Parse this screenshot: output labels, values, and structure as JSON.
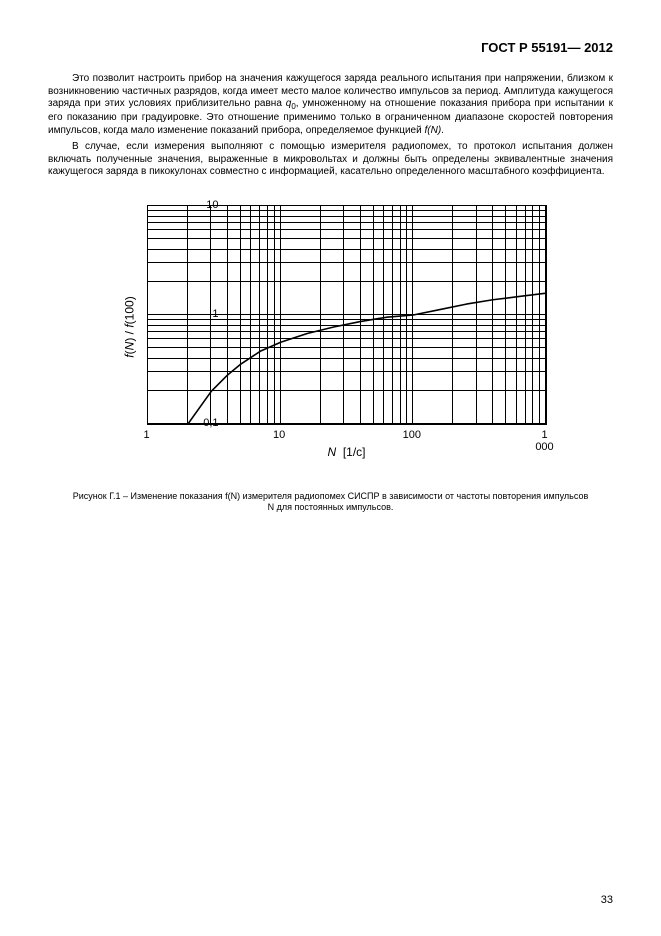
{
  "header": {
    "title": "ГОСТ Р  55191— 2012"
  },
  "paragraphs": {
    "p1_pre": "Это позволит настроить прибор на значения кажущегося заряда реального испытания при напряжении, близком к возникновению частичных разрядов, когда имеет место малое количество импульсов за период. Амплитуда кажущегося заряда при этих условиях приблизительно равна ",
    "p1_sym_q": "q",
    "p1_sub0": "0",
    "p1_mid": ", умноженному на отношение показания прибора при испытании к его показанию при градуировке. Это отношение применимо только в ограниченном диапазоне скоростей повторения импульсов, когда мало изменение показаний прибора, определяемое функцией ",
    "p1_fn": "f(N)",
    "p1_end": ".",
    "p2": "В случае, если измерения выполняют с помощью измерителя радиопомех, то протокол испытания должен включать полученные значения, выраженные в микровольтах и должны быть определены эквивалентные значения кажущегося заряда в пикокулонах совместно с информацией, касательно определенного масштабного коэффициента."
  },
  "chart": {
    "type": "line",
    "xlim_log": [
      0,
      3
    ],
    "ylim_log": [
      -1,
      1
    ],
    "ylabel_html": "<span style='font-style:italic'>f</span>(<span style='font-style:italic'>N</span>) / <span style='font-style:italic'>f</span>(100)",
    "xlabel_html": "<span style='font-style:italic'>N</span> &nbsp;[1/c]",
    "xtick_labels": [
      "1",
      "10",
      "100",
      "1 000"
    ],
    "ytick_labels": [
      "0,1",
      "1",
      "10"
    ],
    "grid_minor_steps": [
      2,
      3,
      4,
      5,
      6,
      7,
      8,
      9
    ],
    "grid_color": "#000000",
    "background": "#ffffff",
    "curve": [
      {
        "x_log": 0.301,
        "y_log": -1.0
      },
      {
        "x_log": 0.477,
        "y_log": -0.7
      },
      {
        "x_log": 0.6,
        "y_log": -0.55
      },
      {
        "x_log": 0.7,
        "y_log": -0.45
      },
      {
        "x_log": 0.85,
        "y_log": -0.33
      },
      {
        "x_log": 1.0,
        "y_log": -0.25
      },
      {
        "x_log": 1.2,
        "y_log": -0.17
      },
      {
        "x_log": 1.4,
        "y_log": -0.11
      },
      {
        "x_log": 1.6,
        "y_log": -0.06
      },
      {
        "x_log": 1.8,
        "y_log": -0.02
      },
      {
        "x_log": 2.0,
        "y_log": 0.0
      },
      {
        "x_log": 2.2,
        "y_log": 0.05
      },
      {
        "x_log": 2.4,
        "y_log": 0.1
      },
      {
        "x_log": 2.6,
        "y_log": 0.14
      },
      {
        "x_log": 2.8,
        "y_log": 0.17
      },
      {
        "x_log": 3.0,
        "y_log": 0.2
      }
    ],
    "line_width": 1.6
  },
  "caption": {
    "text": "Рисунок Г.1 – Изменение показания f(N) измерителя радиопомех СИСПР в зависимости от частоты повторения импульсов N для постоянных импульсов."
  },
  "page_number": "33"
}
